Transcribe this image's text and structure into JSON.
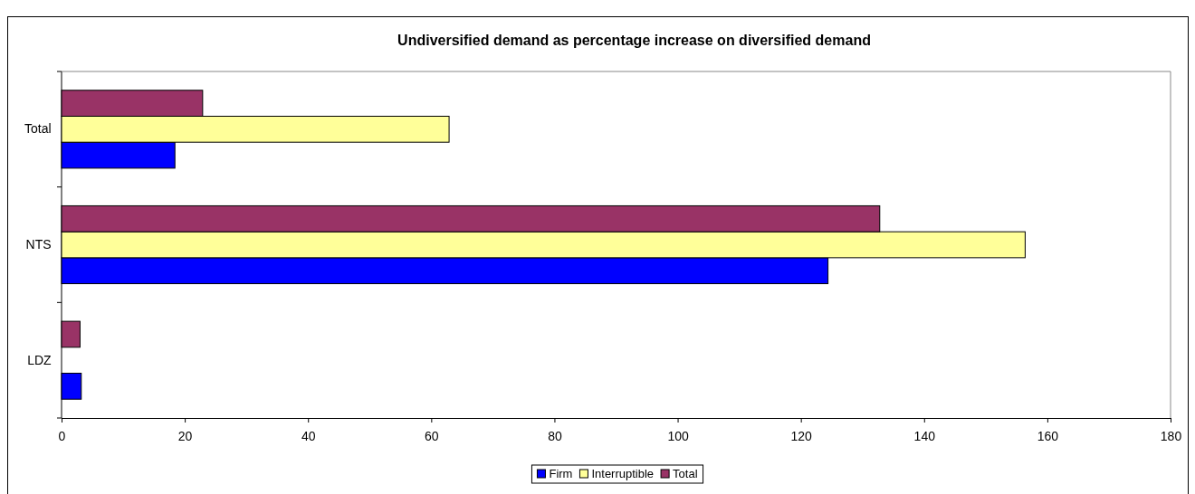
{
  "chart_data": {
    "type": "bar",
    "orientation": "horizontal",
    "title": "Undiversified demand as percentage increase on diversified demand",
    "categories": [
      "Total",
      "NTS",
      "LDZ"
    ],
    "series": [
      {
        "name": "Firm",
        "color": "#0000ff",
        "values": [
          18.4,
          124.4,
          3.2
        ]
      },
      {
        "name": "Interruptible",
        "color": "#ffff99",
        "values": [
          62.9,
          156.4,
          null
        ]
      },
      {
        "name": "Total",
        "color": "#993366",
        "values": [
          22.9,
          132.8,
          3.0
        ]
      }
    ],
    "xlim": [
      0,
      180
    ],
    "xticks": [
      0,
      20,
      40,
      60,
      80,
      100,
      120,
      140,
      160,
      180
    ],
    "grid": false,
    "legend": "bottom"
  }
}
